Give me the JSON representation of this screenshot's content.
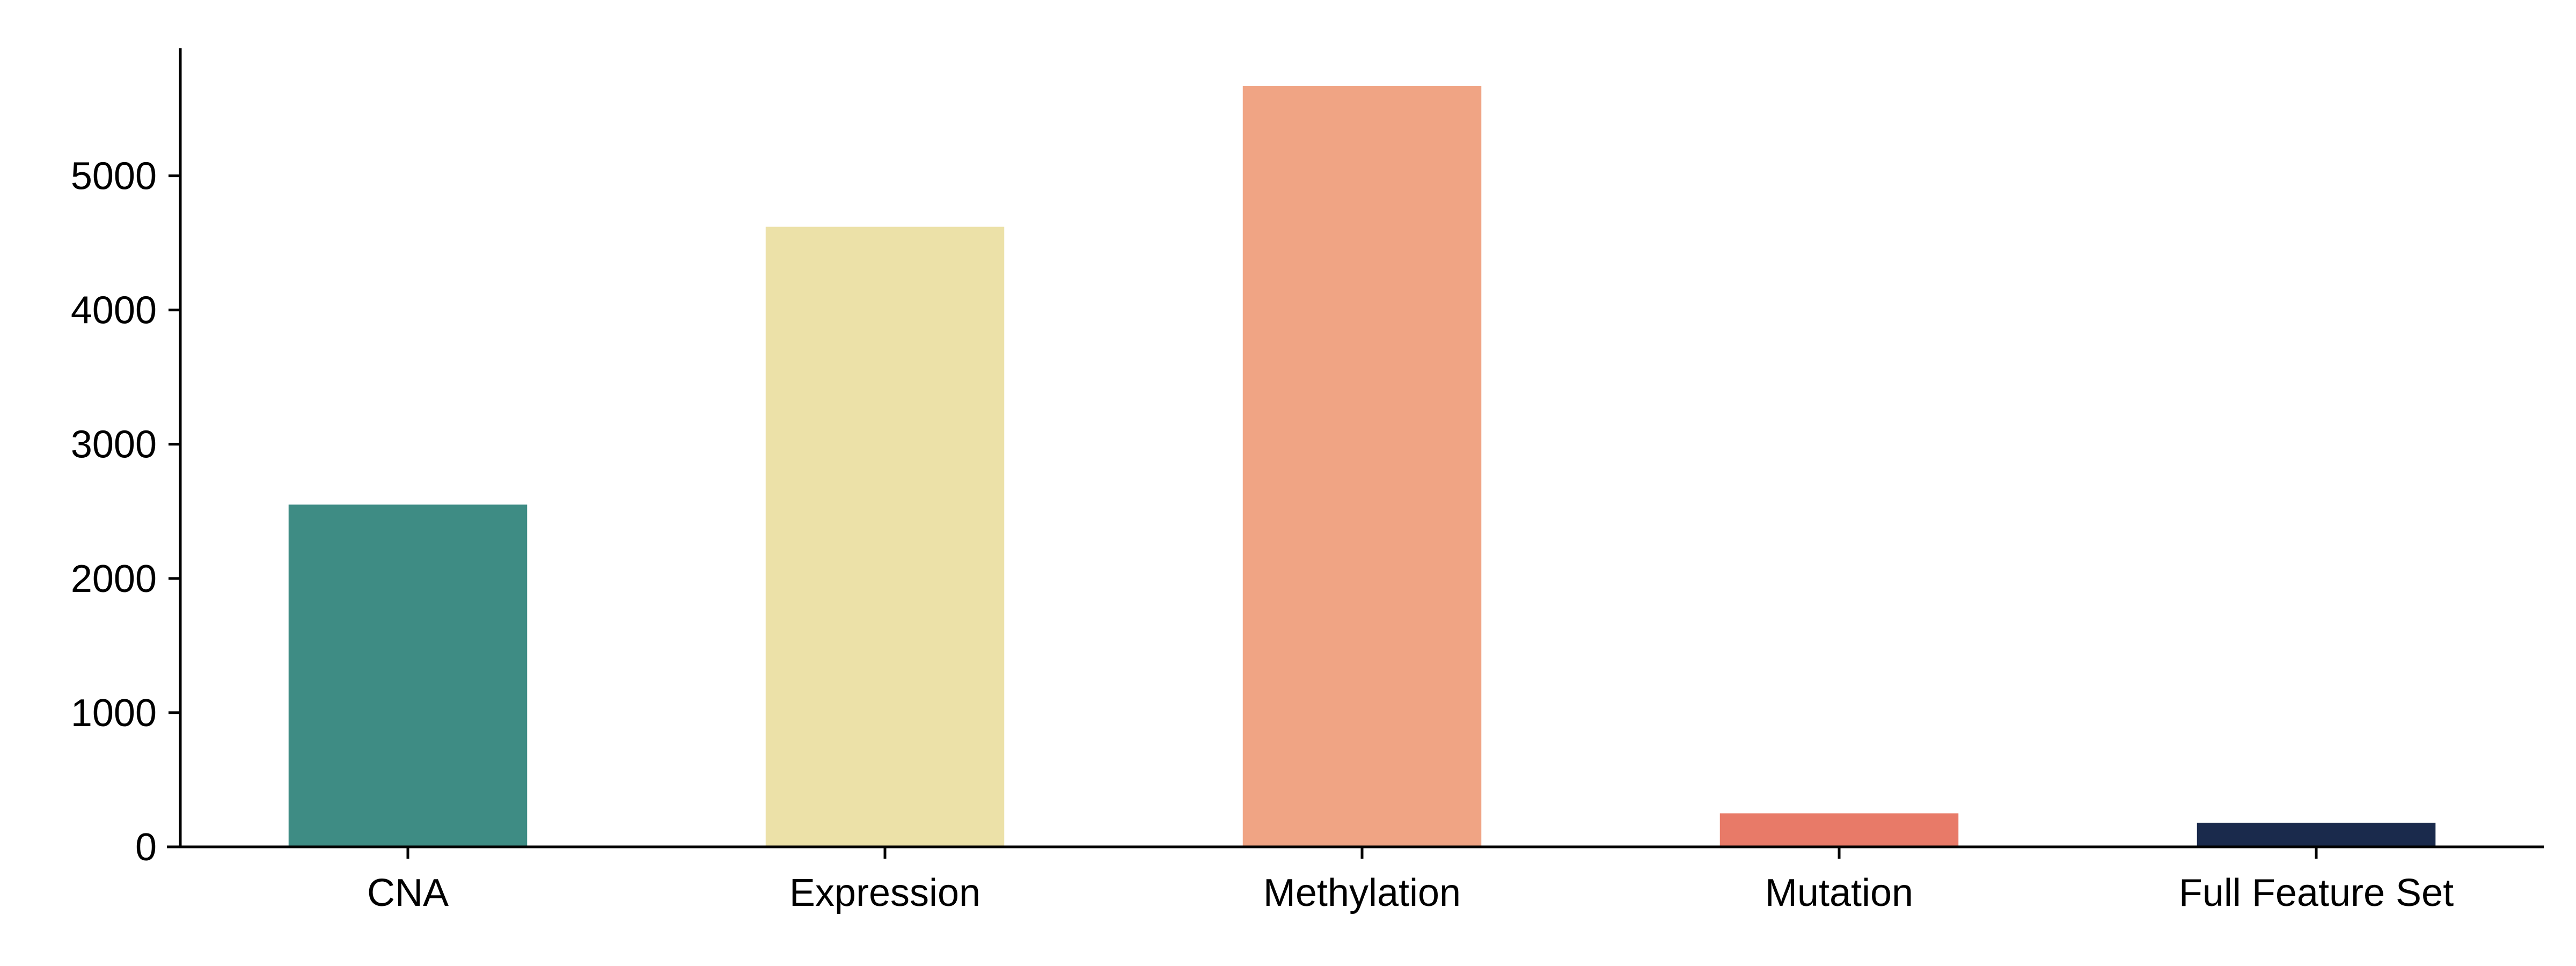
{
  "chart_data": {
    "type": "bar",
    "title": "",
    "xlabel": "",
    "ylabel": "",
    "categories": [
      "CNA",
      "Expression",
      "Methylation",
      "Mutation",
      "Full Feature Set"
    ],
    "values": [
      2550,
      4620,
      5670,
      250,
      180
    ],
    "colors": [
      "#3E8C84",
      "#ECE1A8",
      "#F0A484",
      "#E87A68",
      "#1A2A4C"
    ],
    "ylim": [
      0,
      5950
    ],
    "yticks": [
      0,
      1000,
      2000,
      3000,
      4000,
      5000
    ],
    "ytick_labels": [
      "0",
      "1000",
      "2000",
      "3000",
      "4000",
      "5000"
    ],
    "grid": false,
    "legend": "none"
  }
}
